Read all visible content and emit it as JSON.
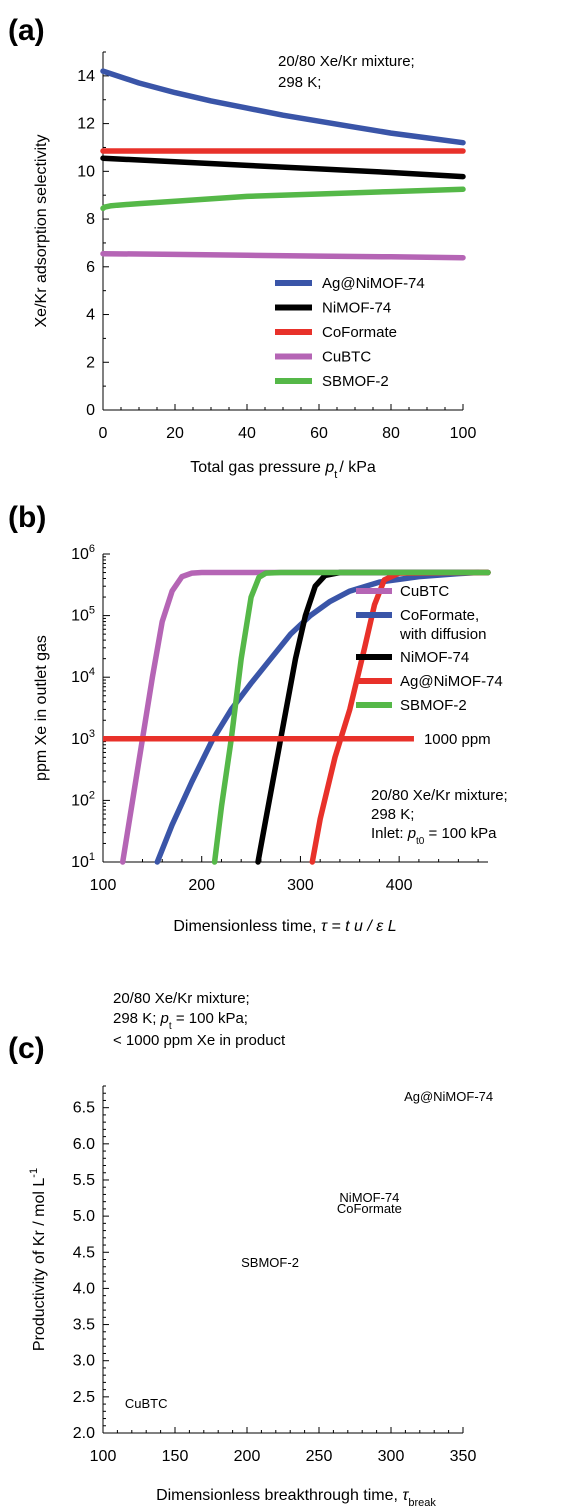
{
  "chart_data": [
    {
      "panel": "(a)",
      "type": "line",
      "xlabel_main": "Total gas pressure ",
      "xlabel_var": "p",
      "xlabel_sub": "t",
      "xlabel_tail": "/ kPa",
      "ylabel": "Xe/Kr adsorption selectivity",
      "xlim": [
        0,
        100
      ],
      "ylim": [
        0,
        15
      ],
      "xticks": [
        0,
        20,
        40,
        60,
        80,
        100
      ],
      "yticks": [
        0,
        2,
        4,
        6,
        8,
        10,
        12,
        14
      ],
      "annotation": [
        "20/80 Xe/Kr mixture;",
        "298 K;"
      ],
      "series": [
        {
          "name": "Ag@NiMOF-74",
          "color": "#3a55a8",
          "x": [
            0,
            10,
            20,
            30,
            40,
            50,
            60,
            70,
            80,
            90,
            100
          ],
          "y": [
            14.2,
            13.7,
            13.3,
            12.95,
            12.65,
            12.35,
            12.1,
            11.85,
            11.6,
            11.4,
            11.2
          ]
        },
        {
          "name": "NiMOF-74",
          "color": "#000000",
          "x": [
            0,
            20,
            40,
            60,
            80,
            100
          ],
          "y": [
            10.55,
            10.4,
            10.25,
            10.1,
            9.95,
            9.78
          ]
        },
        {
          "name": "CoFormate",
          "color": "#e8312a",
          "x": [
            0,
            100
          ],
          "y": [
            10.85,
            10.85
          ]
        },
        {
          "name": "CuBTC",
          "color": "#b565b5",
          "x": [
            0,
            20,
            40,
            60,
            80,
            100
          ],
          "y": [
            6.55,
            6.52,
            6.48,
            6.45,
            6.42,
            6.38
          ]
        },
        {
          "name": "SBMOF-2",
          "color": "#55b848",
          "x": [
            0,
            0.5,
            1,
            2,
            4,
            10,
            20,
            40,
            60,
            80,
            100
          ],
          "y": [
            8.45,
            8.5,
            8.52,
            8.55,
            8.58,
            8.65,
            8.75,
            8.95,
            9.05,
            9.15,
            9.25
          ]
        }
      ]
    },
    {
      "panel": "(b)",
      "type": "line",
      "yscale": "log",
      "xlabel_main": "Dimensionless time, ",
      "xlabel_math": "τ = t u / ε L",
      "ylabel": "ppm Xe in outlet gas",
      "xlim": [
        100,
        490
      ],
      "ylim": [
        10,
        1000000
      ],
      "xticks": [
        100,
        200,
        300,
        400
      ],
      "ytick_base": "10",
      "ytick_exps": [
        "1",
        "2",
        "3",
        "4",
        "5",
        "6"
      ],
      "threshold_label": "1000 ppm",
      "threshold_value": 1000,
      "threshold_x": [
        100,
        415
      ],
      "annotation": [
        "20/80 Xe/Kr mixture;",
        "298 K;"
      ],
      "annotation_inlet_pre": "Inlet: ",
      "annotation_inlet_var": "p",
      "annotation_inlet_sub": "t0",
      "annotation_inlet_post": " = 100 kPa",
      "series": [
        {
          "name": "CuBTC",
          "color": "#b565b5",
          "x": [
            120,
            130,
            140,
            150,
            160,
            170,
            180,
            190,
            200,
            490
          ],
          "y": [
            10,
            100,
            1000,
            10000,
            80000,
            250000,
            430000,
            490000,
            500000,
            500000
          ]
        },
        {
          "name": "CoFormate, with diffusion",
          "name_line2": "with diffusion",
          "name_line1": "CoFormate,",
          "color": "#3a55a8",
          "x": [
            155,
            170,
            190,
            210,
            230,
            250,
            270,
            290,
            310,
            330,
            350,
            380,
            420,
            460,
            480
          ],
          "y": [
            10,
            40,
            200,
            900,
            3000,
            8000,
            20000,
            50000,
            100000,
            170000,
            250000,
            350000,
            430000,
            480000,
            500000
          ]
        },
        {
          "name": "NiMOF-74",
          "color": "#000000",
          "x": [
            257,
            265,
            280,
            295,
            305,
            315,
            325,
            340,
            490
          ],
          "y": [
            10,
            50,
            1000,
            20000,
            100000,
            300000,
            450000,
            500000,
            500000
          ]
        },
        {
          "name": "Ag@NiMOF-74",
          "color": "#e8312a",
          "x": [
            312,
            320,
            335,
            350,
            365,
            375,
            385,
            400,
            490
          ],
          "y": [
            10,
            50,
            500,
            3000,
            30000,
            150000,
            380000,
            490000,
            500000
          ]
        },
        {
          "name": "SBMOF-2",
          "color": "#55b848",
          "x": [
            213,
            220,
            230,
            240,
            250,
            258,
            265,
            280,
            490
          ],
          "y": [
            10,
            80,
            1000,
            20000,
            200000,
            420000,
            490000,
            500000,
            500000
          ]
        }
      ]
    },
    {
      "panel": "(c)",
      "type": "scatter",
      "xlabel_main": "Dimensionless breakthrough time, ",
      "xlabel_var": "τ",
      "xlabel_sub": "break",
      "ylabel_main": "Productivity of Kr / mol L",
      "ylabel_sup": "-1",
      "xlim": [
        100,
        350
      ],
      "ylim": [
        2.0,
        6.8
      ],
      "xticks": [
        100,
        150,
        200,
        250,
        300,
        350
      ],
      "yticks": [
        "2.0",
        "2.5",
        "3.0",
        "3.5",
        "4.0",
        "4.5",
        "5.0",
        "5.5",
        "6.0",
        "6.5"
      ],
      "annotation_line1": "20/80 Xe/Kr mixture;",
      "annotation_line2_pre": "298 K; ",
      "annotation_line2_var": "p",
      "annotation_line2_sub": "t",
      "annotation_line2_post": " = 100 kPa;",
      "annotation_line3": "< 1000 ppm Xe in product",
      "points": [
        {
          "label": "Ag@NiMOF-74",
          "x": 340,
          "y": 6.65
        },
        {
          "label": "NiMOF-74",
          "x": 285,
          "y": 5.25
        },
        {
          "label": "CoFormate",
          "x": 285,
          "y": 5.1
        },
        {
          "label": "SBMOF-2",
          "x": 216,
          "y": 4.35
        },
        {
          "label": "CuBTC",
          "x": 130,
          "y": 2.4
        }
      ]
    }
  ]
}
